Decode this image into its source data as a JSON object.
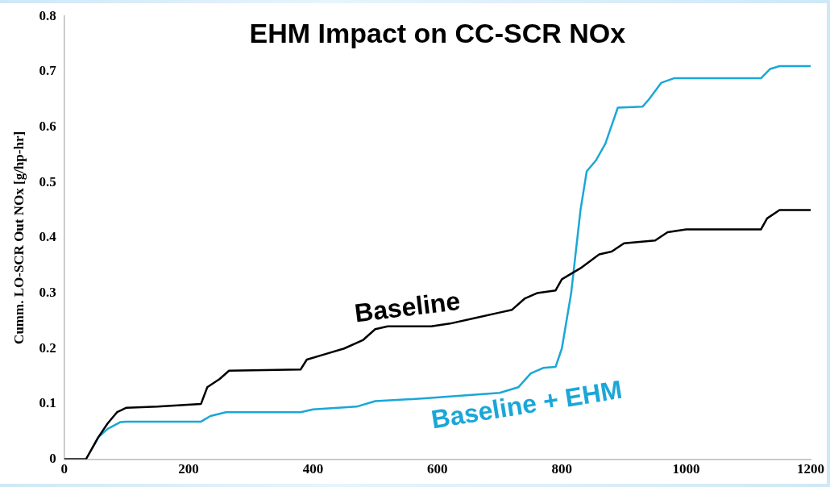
{
  "chart_data": {
    "type": "line",
    "title": "EHM Impact on CC-SCR NOx",
    "ylabel": "Cumm. LO-SCR Out NOx [g/hp-hr]",
    "xlim": [
      0,
      1200
    ],
    "xticks": [
      0,
      200,
      400,
      600,
      800,
      1000,
      1200
    ],
    "ylim": [
      0,
      0.8
    ],
    "yticks": [
      0,
      0.1,
      0.2,
      0.3,
      0.4,
      0.5,
      0.6,
      0.7,
      0.8
    ],
    "grid": false,
    "legend": false,
    "marker": "none",
    "line_style": "solid",
    "series": [
      {
        "name": "Baseline",
        "color": "#000000",
        "x": [
          0,
          35,
          45,
          55,
          70,
          85,
          100,
          150,
          220,
          230,
          250,
          265,
          380,
          390,
          420,
          450,
          480,
          500,
          520,
          590,
          620,
          660,
          700,
          720,
          740,
          760,
          790,
          800,
          830,
          860,
          880,
          900,
          950,
          970,
          1000,
          1120,
          1130,
          1150,
          1200
        ],
        "values": [
          0,
          0,
          0.02,
          0.04,
          0.065,
          0.085,
          0.093,
          0.095,
          0.1,
          0.13,
          0.145,
          0.16,
          0.162,
          0.18,
          0.19,
          0.2,
          0.215,
          0.235,
          0.24,
          0.24,
          0.245,
          0.255,
          0.265,
          0.27,
          0.29,
          0.3,
          0.305,
          0.325,
          0.345,
          0.37,
          0.375,
          0.39,
          0.395,
          0.41,
          0.415,
          0.415,
          0.435,
          0.45,
          0.45
        ]
      },
      {
        "name": "Baseline + EHM",
        "color": "#1aa7d8",
        "x": [
          45,
          55,
          70,
          90,
          100,
          220,
          235,
          260,
          380,
          400,
          470,
          500,
          580,
          700,
          730,
          750,
          770,
          790,
          800,
          815,
          830,
          840,
          855,
          870,
          890,
          930,
          940,
          960,
          980,
          1120,
          1135,
          1150,
          1200
        ],
        "values": [
          0.02,
          0.04,
          0.055,
          0.067,
          0.068,
          0.068,
          0.078,
          0.085,
          0.085,
          0.09,
          0.095,
          0.105,
          0.11,
          0.12,
          0.13,
          0.155,
          0.165,
          0.167,
          0.2,
          0.3,
          0.45,
          0.52,
          0.54,
          0.57,
          0.635,
          0.637,
          0.65,
          0.68,
          0.688,
          0.688,
          0.705,
          0.71,
          0.71
        ]
      }
    ]
  }
}
